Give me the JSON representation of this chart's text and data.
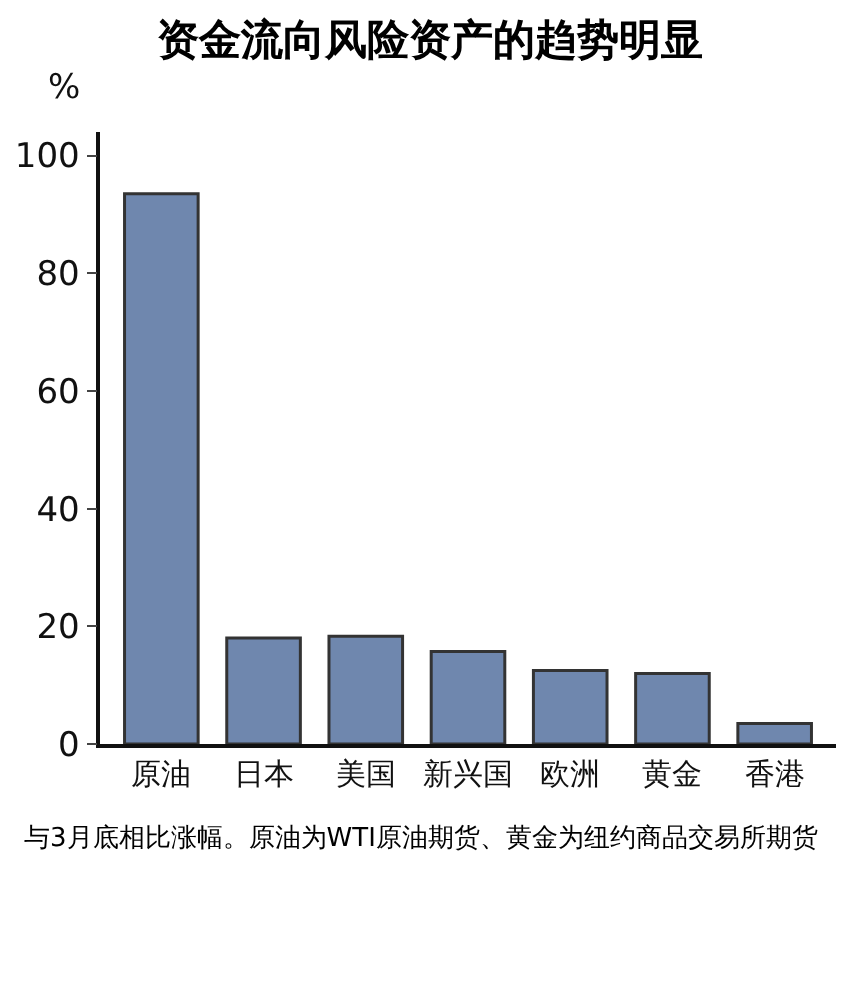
{
  "chart_data": {
    "type": "bar",
    "title": "资金流向风险资产的趋势明显",
    "ylabel": "%",
    "categories": [
      "原油",
      "日本",
      "美国",
      "新兴国",
      "欧洲",
      "黄金",
      "香港"
    ],
    "values": [
      93.5,
      18,
      18.3,
      15.7,
      12.5,
      12,
      3.5
    ],
    "color": "#6f87ae",
    "ylim": [
      0,
      104
    ],
    "yticks": [
      0,
      20,
      40,
      60,
      80,
      100
    ],
    "grid": false,
    "annotations": [
      "与3月底相比涨幅。原油为WTI原油期货、黄金为纽约商品交易所期货"
    ]
  }
}
